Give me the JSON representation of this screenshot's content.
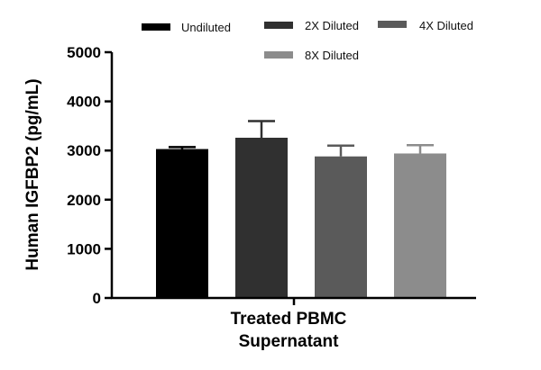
{
  "chart_data": {
    "type": "bar",
    "categories": [
      "Treated PBMC Supernatant"
    ],
    "xlabel_lines": [
      "Treated PBMC",
      "Supernatant"
    ],
    "ylabel": "Human IGFBP2 (pg/mL)",
    "ylim": [
      0,
      5000
    ],
    "yticks": [
      0,
      1000,
      2000,
      3000,
      4000,
      5000
    ],
    "grid": false,
    "legend_position": "top",
    "series": [
      {
        "name": "Undiluted",
        "values": [
          3030
        ],
        "error": [
          40
        ],
        "color": "#000000"
      },
      {
        "name": "2X Diluted",
        "values": [
          3260
        ],
        "error": [
          340
        ],
        "color": "#303030"
      },
      {
        "name": "4X Diluted",
        "values": [
          2880
        ],
        "error": [
          220
        ],
        "color": "#5a5a5a"
      },
      {
        "name": "8X Diluted",
        "values": [
          2940
        ],
        "error": [
          170
        ],
        "color": "#8c8c8c"
      }
    ]
  }
}
